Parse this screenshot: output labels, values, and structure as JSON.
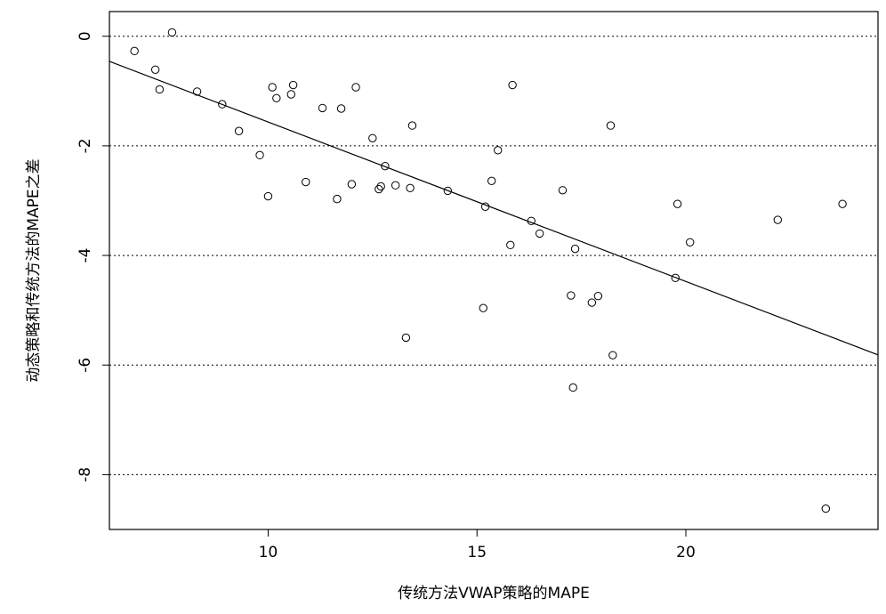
{
  "chart_data": {
    "type": "scatter",
    "xlabel": "传统方法VWAP策略的MAPE",
    "ylabel": "动态策略和传统方法的MAPE之差",
    "xlim": [
      6.2,
      24.6
    ],
    "ylim": [
      -9.0,
      0.45
    ],
    "xticks": [
      10,
      15,
      20
    ],
    "yticks": [
      0,
      -2,
      -4,
      -6,
      -8
    ],
    "xtick_labels": [
      "10",
      "15",
      "20"
    ],
    "ytick_labels": [
      "0",
      "-2",
      "-4",
      "-6",
      "-8"
    ],
    "grid": "horizontal dotted at y ticks",
    "marker": "open circle",
    "regression_line": {
      "slope": -0.291,
      "intercept": 1.345
    },
    "points": [
      [
        6.8,
        -0.27
      ],
      [
        7.3,
        -0.61
      ],
      [
        7.4,
        -0.97
      ],
      [
        7.7,
        0.07
      ],
      [
        8.3,
        -1.01
      ],
      [
        8.9,
        -1.24
      ],
      [
        9.3,
        -1.73
      ],
      [
        9.8,
        -2.17
      ],
      [
        10.0,
        -2.92
      ],
      [
        10.1,
        -0.93
      ],
      [
        10.2,
        -1.13
      ],
      [
        10.55,
        -1.06
      ],
      [
        10.6,
        -0.89
      ],
      [
        10.9,
        -2.66
      ],
      [
        11.3,
        -1.31
      ],
      [
        11.65,
        -2.97
      ],
      [
        11.75,
        -1.32
      ],
      [
        12.0,
        -2.7
      ],
      [
        12.1,
        -0.93
      ],
      [
        12.5,
        -1.86
      ],
      [
        12.65,
        -2.79
      ],
      [
        12.7,
        -2.74
      ],
      [
        12.8,
        -2.37
      ],
      [
        13.05,
        -2.72
      ],
      [
        13.3,
        -5.5
      ],
      [
        13.4,
        -2.77
      ],
      [
        13.45,
        -1.63
      ],
      [
        14.3,
        -2.82
      ],
      [
        15.15,
        -4.96
      ],
      [
        15.2,
        -3.11
      ],
      [
        15.35,
        -2.64
      ],
      [
        15.5,
        -2.08
      ],
      [
        15.8,
        -3.81
      ],
      [
        15.85,
        -0.89
      ],
      [
        16.3,
        -3.37
      ],
      [
        16.5,
        -3.6
      ],
      [
        17.05,
        -2.81
      ],
      [
        17.25,
        -4.73
      ],
      [
        17.3,
        -6.41
      ],
      [
        17.35,
        -3.88
      ],
      [
        17.75,
        -4.86
      ],
      [
        17.9,
        -4.74
      ],
      [
        18.2,
        -1.63
      ],
      [
        18.25,
        -5.82
      ],
      [
        19.75,
        -4.41
      ],
      [
        19.8,
        -3.06
      ],
      [
        20.1,
        -3.76
      ],
      [
        22.2,
        -3.35
      ],
      [
        23.35,
        -8.62
      ],
      [
        23.75,
        -3.06
      ]
    ]
  }
}
